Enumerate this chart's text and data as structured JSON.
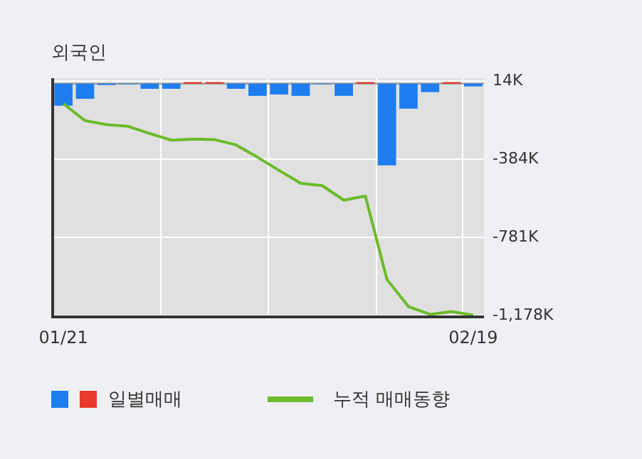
{
  "chart_data": {
    "type": "bar",
    "title": "외국인",
    "categories": [
      "01/21",
      null,
      null,
      null,
      null,
      null,
      null,
      null,
      null,
      null,
      null,
      null,
      null,
      null,
      null,
      null,
      null,
      null,
      null,
      "02/19"
    ],
    "series": [
      {
        "name": "일별매매",
        "color": "#1e7ef0",
        "colors": [
          "#1e7ef0",
          "#1e7ef0",
          "#1e7ef0",
          "#1e7ef0",
          "#1e7ef0",
          "#1e7ef0",
          "#e8392b",
          "#e8392b",
          "#1e7ef0",
          "#1e7ef0",
          "#1e7ef0",
          "#1e7ef0",
          "#1e7ef0",
          "#1e7ef0",
          "#e8392b",
          "#1e7ef0",
          "#1e7ef0",
          "#1e7ef0",
          "#e8392b",
          "#1e7ef0"
        ],
        "values": [
          -112,
          -77,
          -7,
          -3,
          -26,
          -26,
          8,
          8,
          -26,
          -62,
          -55,
          -62,
          -3,
          -62,
          8,
          -415,
          -127,
          -43,
          8,
          -14
        ]
      },
      {
        "name": "누적 매매동향",
        "type": "line",
        "color": "#6cbb2a",
        "values": [
          -102,
          -188,
          -208,
          -217,
          -253,
          -287,
          -282,
          -284,
          -311,
          -374,
          -441,
          -506,
          -518,
          -592,
          -571,
          -995,
          -1133,
          -1172,
          -1158,
          -1177
        ]
      }
    ],
    "ylim": [
      -1185,
      28
    ],
    "yticks": [
      {
        "value": 14,
        "label": "14K"
      },
      {
        "value": -384,
        "label": "-384K"
      },
      {
        "value": -781,
        "label": "-781K"
      },
      {
        "value": -1178,
        "label": "-1,178K"
      }
    ],
    "grid": true,
    "legend": "bottom",
    "marker": "none",
    "line_style": "solid"
  }
}
